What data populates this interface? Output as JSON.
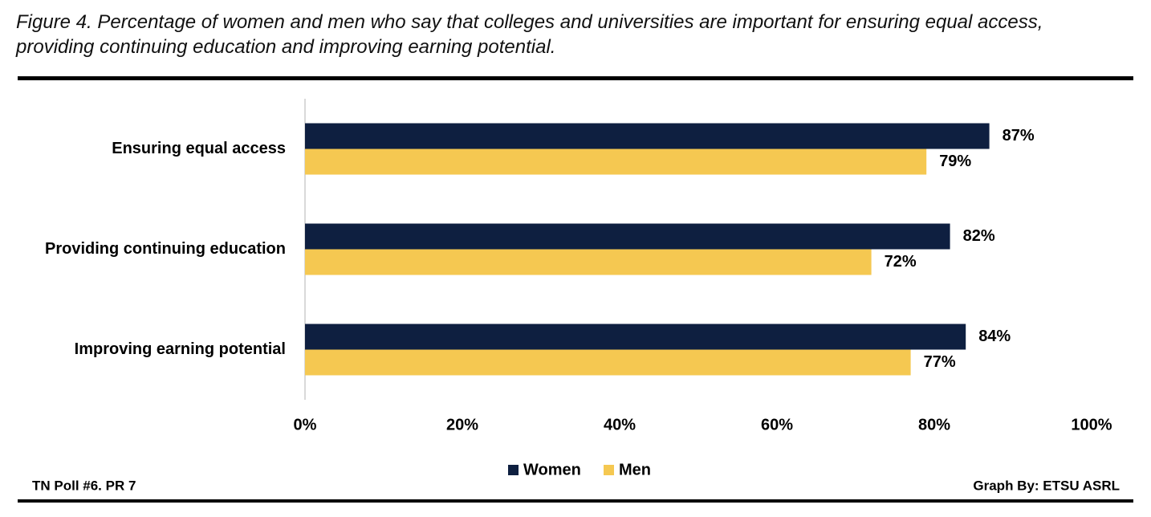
{
  "chart_data": {
    "type": "bar",
    "orientation": "horizontal",
    "title": "Figure 4. Percentage of women and men who say that colleges and universities are important for ensuring equal access, providing continuing education and improving earning potential.",
    "categories": [
      "Ensuring equal access",
      "Providing continuing education",
      "Improving earning potential"
    ],
    "series": [
      {
        "name": "Women",
        "color": "#0e1f40",
        "values": [
          87,
          82,
          84
        ],
        "value_labels": [
          "87%",
          "82%",
          "84%"
        ]
      },
      {
        "name": "Men",
        "color": "#f5c851",
        "values": [
          79,
          72,
          77
        ],
        "value_labels": [
          "79%",
          "72%",
          "77%"
        ]
      }
    ],
    "xlim": [
      0,
      100
    ],
    "xticks": [
      {
        "value": 0,
        "label": "0%"
      },
      {
        "value": 20,
        "label": "20%"
      },
      {
        "value": 40,
        "label": "40%"
      },
      {
        "value": 60,
        "label": "60%"
      },
      {
        "value": 80,
        "label": "80%"
      },
      {
        "value": 100,
        "label": "100%"
      }
    ],
    "grid": false,
    "legend": "bottom",
    "source": "TN Poll #6. PR 7",
    "credit": "Graph By: ETSU ASRL"
  }
}
